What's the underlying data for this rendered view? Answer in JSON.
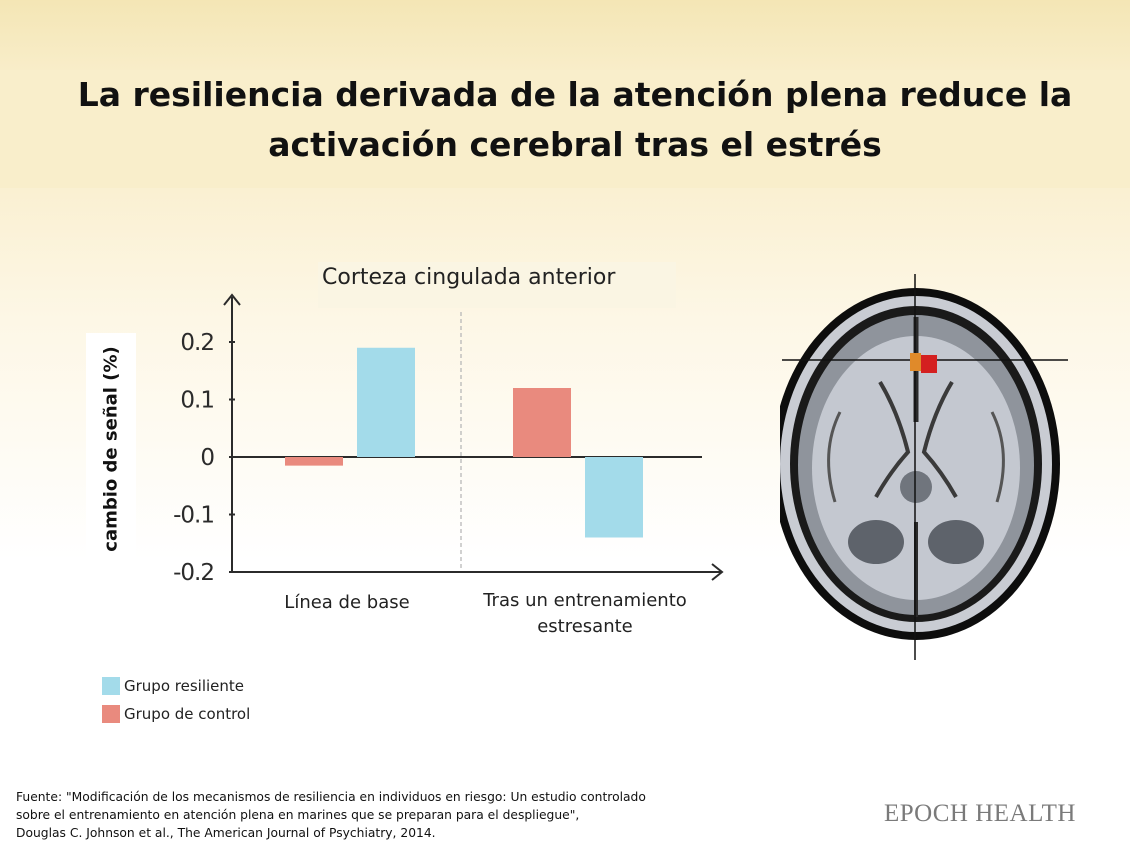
{
  "header": {
    "title_line1": "La resiliencia derivada de la atención plena reduce la",
    "title_line2": "activación cerebral tras el estrés"
  },
  "chart_data": {
    "type": "bar",
    "subtitle": "Corteza cingulada anterior",
    "ylabel": "cambio de señal (%)",
    "categories": [
      "Línea de base",
      "Tras un entrenamiento estresante"
    ],
    "category_label_lines": [
      [
        "Línea de base"
      ],
      [
        "Tras un entrenamiento",
        "estresante"
      ]
    ],
    "series": [
      {
        "name": "Grupo de control",
        "color": "#e98a7e",
        "values": [
          -0.015,
          0.12
        ]
      },
      {
        "name": "Grupo resiliente",
        "color": "#a3dbea",
        "values": [
          0.19,
          -0.14
        ]
      }
    ],
    "yticks": [
      "0.2",
      "0.1",
      "0",
      "-0.1",
      "-0.2"
    ],
    "ylim": [
      -0.2,
      0.2
    ],
    "legend_placement": "bottom-left",
    "grid": false
  },
  "legend": {
    "resilient_label": "Grupo resiliente",
    "resilient_color": "#a3dbea",
    "control_label": "Grupo de control",
    "control_color": "#e98a7e"
  },
  "source": {
    "line1": "Fuente: \"Modificación de los mecanismos de resiliencia en individuos en riesgo: Un estudio controlado",
    "line2": "sobre el entrenamiento en atención plena en marines que se preparan para el despliegue\",",
    "line3": "Douglas C. Johnson et al., The American Journal of Psychiatry, 2014."
  },
  "brand": {
    "logo_text": "EPOCH HEALTH"
  }
}
